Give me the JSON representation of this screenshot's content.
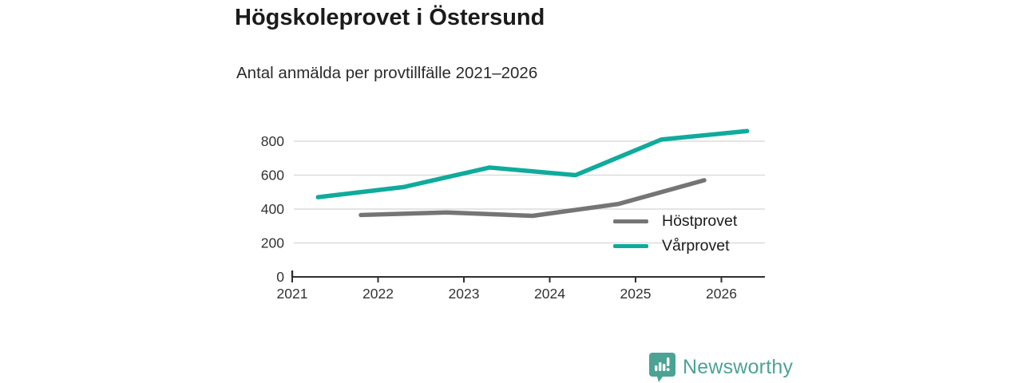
{
  "header": {
    "title": "Högskoleprovet i Östersund",
    "subtitle": "Antal anmälda per provtillfälle 2021–2026"
  },
  "chart_data": {
    "type": "line",
    "title": "Högskoleprovet i Östersund",
    "subtitle": "Antal anmälda per provtillfälle 2021–2026",
    "xlabel": "",
    "ylabel": "",
    "x_tick_labels": [
      "2021",
      "2022",
      "2023",
      "2024",
      "2025",
      "2026"
    ],
    "x_ticks": [
      2021,
      2022,
      2023,
      2024,
      2025,
      2026
    ],
    "x_range": [
      2021,
      2026.5
    ],
    "y_ticks": [
      0,
      200,
      400,
      600,
      800
    ],
    "ylim": [
      0,
      920
    ],
    "grid": "horizontal",
    "legend_position": "inside-right",
    "series": [
      {
        "name": "Höstprovet",
        "color": "#757575",
        "x": [
          2021.8,
          2022.8,
          2023.8,
          2024.8,
          2025.8
        ],
        "values": [
          365,
          380,
          360,
          430,
          570
        ]
      },
      {
        "name": "Vårprovet",
        "color": "#0fab9c",
        "x": [
          2021.3,
          2022.3,
          2023.3,
          2024.3,
          2025.3,
          2026.3
        ],
        "values": [
          470,
          530,
          645,
          600,
          810,
          860
        ]
      }
    ]
  },
  "legend": {
    "items": [
      {
        "label": "Höstprovet",
        "color": "#757575"
      },
      {
        "label": "Vårprovet",
        "color": "#0fab9c"
      }
    ]
  },
  "footer": {
    "brand": "Newsworthy",
    "brand_color": "#4ba396",
    "logo_icon": "bar-chart-speech-bubble-icon"
  },
  "colors": {
    "title_text": "#1b1b1b",
    "axis_text": "#333333",
    "gridline": "#dcdcdc",
    "axis_line": "#2f2f2f"
  }
}
